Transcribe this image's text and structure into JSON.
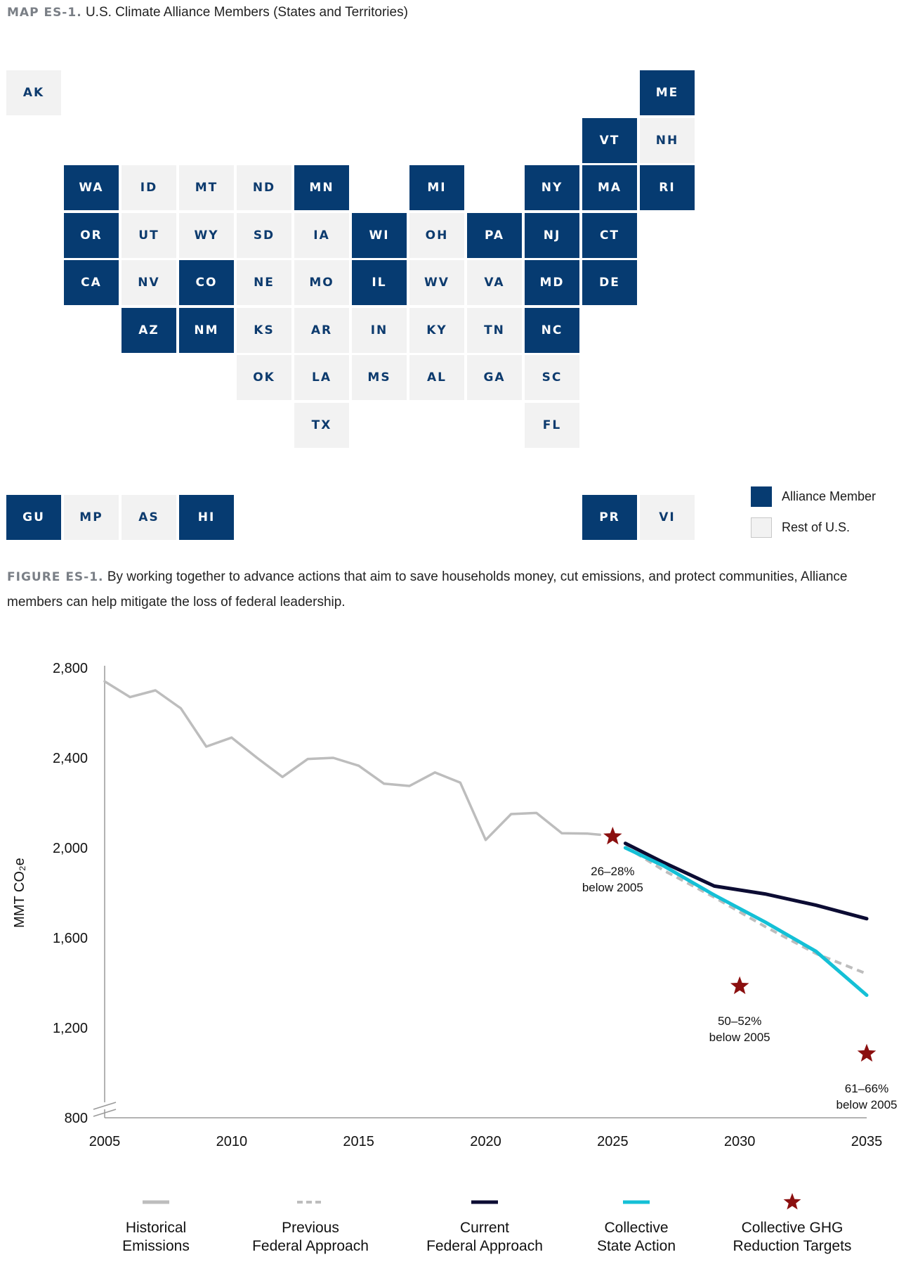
{
  "map": {
    "label": "MAP ES-1.",
    "title": "U.S. Climate Alliance Members (States and Territories)",
    "legend": {
      "member": "Alliance Member",
      "rest": "Rest of U.S."
    },
    "colors": {
      "member": "#063b71",
      "rest": "#f2f2f2"
    },
    "tiles": [
      {
        "code": "AK",
        "member": false
      },
      {
        "code": "ME",
        "member": true
      },
      {
        "code": "VT",
        "member": true
      },
      {
        "code": "NH",
        "member": false
      },
      {
        "code": "WA",
        "member": true
      },
      {
        "code": "ID",
        "member": false
      },
      {
        "code": "MT",
        "member": false
      },
      {
        "code": "ND",
        "member": false
      },
      {
        "code": "MN",
        "member": true
      },
      {
        "code": "MI",
        "member": true
      },
      {
        "code": "NY",
        "member": true
      },
      {
        "code": "MA",
        "member": true
      },
      {
        "code": "RI",
        "member": true
      },
      {
        "code": "OR",
        "member": true
      },
      {
        "code": "UT",
        "member": false
      },
      {
        "code": "WY",
        "member": false
      },
      {
        "code": "SD",
        "member": false
      },
      {
        "code": "IA",
        "member": false
      },
      {
        "code": "WI",
        "member": true
      },
      {
        "code": "OH",
        "member": false
      },
      {
        "code": "PA",
        "member": true
      },
      {
        "code": "NJ",
        "member": true
      },
      {
        "code": "CT",
        "member": true
      },
      {
        "code": "CA",
        "member": true
      },
      {
        "code": "NV",
        "member": false
      },
      {
        "code": "CO",
        "member": true
      },
      {
        "code": "NE",
        "member": false
      },
      {
        "code": "MO",
        "member": false
      },
      {
        "code": "IL",
        "member": true
      },
      {
        "code": "WV",
        "member": false
      },
      {
        "code": "VA",
        "member": false
      },
      {
        "code": "MD",
        "member": true
      },
      {
        "code": "DE",
        "member": true
      },
      {
        "code": "AZ",
        "member": true
      },
      {
        "code": "NM",
        "member": true
      },
      {
        "code": "KS",
        "member": false
      },
      {
        "code": "AR",
        "member": false
      },
      {
        "code": "IN",
        "member": false
      },
      {
        "code": "KY",
        "member": false
      },
      {
        "code": "TN",
        "member": false
      },
      {
        "code": "NC",
        "member": true
      },
      {
        "code": "OK",
        "member": false
      },
      {
        "code": "LA",
        "member": false
      },
      {
        "code": "MS",
        "member": false
      },
      {
        "code": "AL",
        "member": false
      },
      {
        "code": "GA",
        "member": false
      },
      {
        "code": "SC",
        "member": false
      },
      {
        "code": "TX",
        "member": false
      },
      {
        "code": "FL",
        "member": false
      },
      {
        "code": "GU",
        "member": true
      },
      {
        "code": "MP",
        "member": false
      },
      {
        "code": "AS",
        "member": false
      },
      {
        "code": "HI",
        "member": true
      },
      {
        "code": "PR",
        "member": true
      },
      {
        "code": "VI",
        "member": false
      }
    ]
  },
  "figure": {
    "label": "FIGURE ES-1.",
    "caption": "By working together to advance actions that aim to save households money, cut emissions, and protect communities, Alliance members can help mitigate the loss of federal leadership."
  },
  "chart_data": {
    "type": "line",
    "ylabel": "MMT CO₂e",
    "ylim": [
      800,
      2800
    ],
    "yticks": [
      800,
      1200,
      1600,
      2000,
      2400,
      2800
    ],
    "ytick_labels": [
      "800",
      "1,200",
      "1,600",
      "2,000",
      "2,400",
      "2,800"
    ],
    "xlim": [
      2005,
      2035
    ],
    "xticks": [
      2005,
      2010,
      2015,
      2020,
      2025,
      2030,
      2035
    ],
    "axis_break": true,
    "series": [
      {
        "name": "Historical Emissions",
        "style": "solid",
        "color": "#bdbdbd",
        "points": [
          [
            2005,
            2740
          ],
          [
            2006,
            2670
          ],
          [
            2007,
            2700
          ],
          [
            2008,
            2620
          ],
          [
            2009,
            2450
          ],
          [
            2010,
            2490
          ],
          [
            2011,
            2400
          ],
          [
            2012,
            2315
          ],
          [
            2013,
            2395
          ],
          [
            2014,
            2400
          ],
          [
            2015,
            2365
          ],
          [
            2016,
            2285
          ],
          [
            2017,
            2275
          ],
          [
            2018,
            2335
          ],
          [
            2019,
            2290
          ],
          [
            2020,
            2035
          ],
          [
            2021,
            2150
          ],
          [
            2022,
            2155
          ],
          [
            2023,
            2065
          ],
          [
            2024,
            2063
          ],
          [
            2024.5,
            2058
          ]
        ]
      },
      {
        "name": "Previous Federal Approach",
        "style": "dashed",
        "color": "#bdbdbd",
        "points": [
          [
            2025.5,
            2005
          ],
          [
            2027,
            1900
          ],
          [
            2029,
            1780
          ],
          [
            2031,
            1650
          ],
          [
            2033,
            1530
          ],
          [
            2035,
            1440
          ]
        ]
      },
      {
        "name": "Current Federal Approach",
        "style": "solid",
        "color": "#0c0c33",
        "points": [
          [
            2025.5,
            2020
          ],
          [
            2027,
            1935
          ],
          [
            2029,
            1830
          ],
          [
            2031,
            1795
          ],
          [
            2033,
            1745
          ],
          [
            2035,
            1685
          ]
        ]
      },
      {
        "name": "Collective State Action",
        "style": "solid",
        "color": "#14c0d6",
        "points": [
          [
            2025.5,
            2000
          ],
          [
            2027,
            1920
          ],
          [
            2029,
            1790
          ],
          [
            2031,
            1670
          ],
          [
            2033,
            1540
          ],
          [
            2035,
            1345
          ]
        ]
      }
    ],
    "targets": {
      "name": "Collective GHG Reduction Targets",
      "color": "#8b0f0f",
      "points": [
        {
          "x": 2025,
          "y": 2050,
          "label1": "26–28%",
          "label2": "below 2005"
        },
        {
          "x": 2030,
          "y": 1385,
          "label1": "50–52%",
          "label2": "below 2005"
        },
        {
          "x": 2035,
          "y": 1085,
          "label1": "61–66%",
          "label2": "below 2005"
        }
      ]
    },
    "legend": [
      {
        "line1": "Historical",
        "line2": "Emissions",
        "kind": "solid",
        "color": "#bdbdbd"
      },
      {
        "line1": "Previous",
        "line2": "Federal Approach",
        "kind": "dashed",
        "color": "#bdbdbd"
      },
      {
        "line1": "Current",
        "line2": "Federal Approach",
        "kind": "solid",
        "color": "#0c0c33"
      },
      {
        "line1": "Collective",
        "line2": "State Action",
        "kind": "solid",
        "color": "#14c0d6"
      },
      {
        "line1": "Collective GHG",
        "line2": "Reduction Targets",
        "kind": "star",
        "color": "#8b0f0f"
      }
    ]
  }
}
